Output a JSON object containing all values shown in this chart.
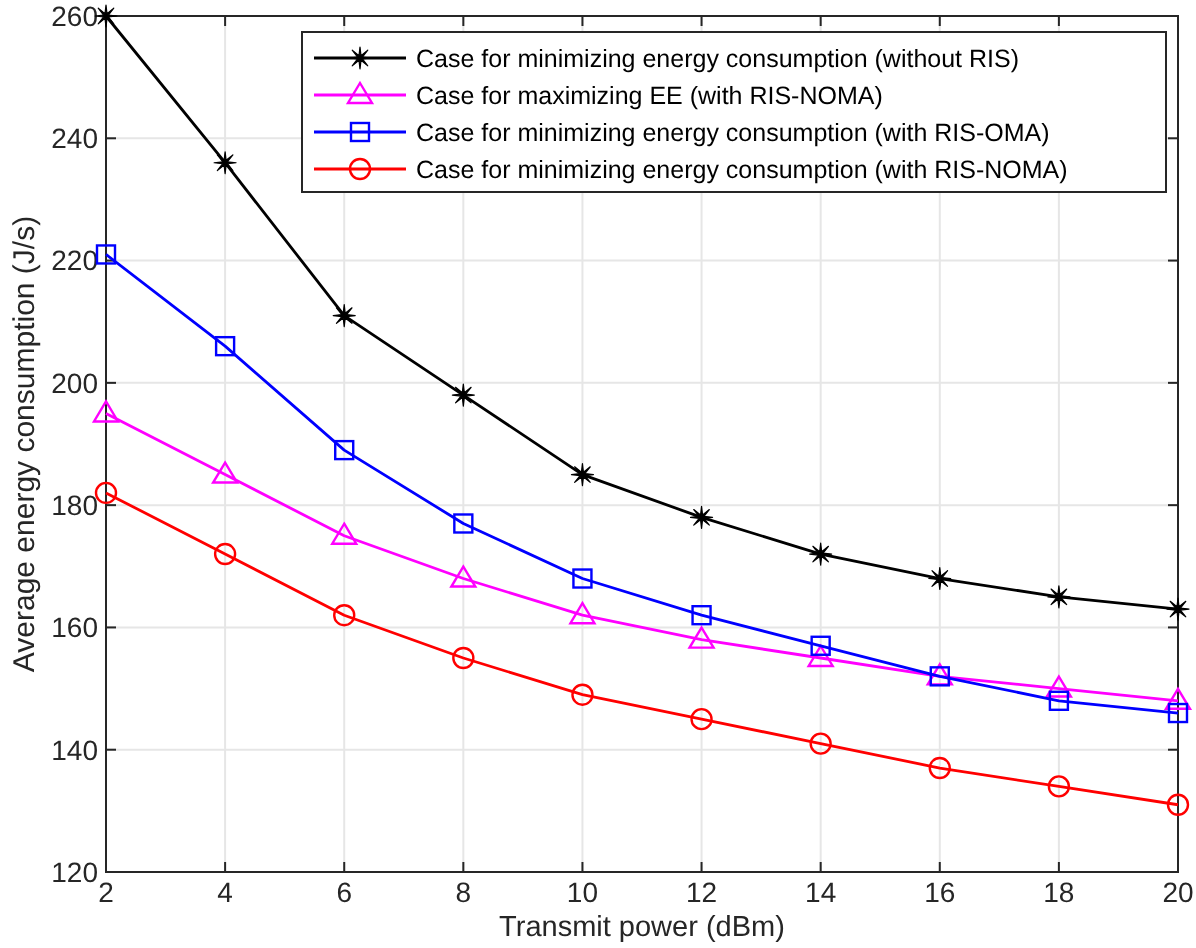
{
  "chart_data": {
    "type": "line",
    "xlabel": "Transmit power (dBm)",
    "ylabel": "Average energy consumption (J/s)",
    "x": [
      2,
      4,
      6,
      8,
      10,
      12,
      14,
      16,
      18,
      20
    ],
    "xlim": [
      2,
      20
    ],
    "xticks": [
      2,
      4,
      6,
      8,
      10,
      12,
      14,
      16,
      18,
      20
    ],
    "ylim": [
      120,
      260
    ],
    "yticks": [
      120,
      140,
      160,
      180,
      200,
      220,
      240,
      260
    ],
    "grid": true,
    "legend": "top right",
    "series": [
      {
        "name": "Case for minimizing energy consumption (without RIS)",
        "color": "#000000",
        "marker": "star",
        "values": [
          260,
          236,
          211,
          198,
          185,
          178,
          172,
          168,
          165,
          163
        ]
      },
      {
        "name": "Case for maximizing EE (with RIS-NOMA)",
        "color": "#ff00ff",
        "marker": "triangle",
        "values": [
          195,
          185,
          175,
          168,
          162,
          158,
          155,
          152,
          150,
          148
        ]
      },
      {
        "name": "Case for minimizing energy consumption (with RIS-OMA)",
        "color": "#0000ff",
        "marker": "square",
        "values": [
          221,
          206,
          189,
          177,
          168,
          162,
          157,
          152,
          148,
          146
        ]
      },
      {
        "name": "Case for minimizing energy consumption (with RIS-NOMA)",
        "color": "#ff0000",
        "marker": "circle",
        "values": [
          182,
          172,
          162,
          155,
          149,
          145,
          141,
          137,
          134,
          131
        ]
      }
    ]
  }
}
